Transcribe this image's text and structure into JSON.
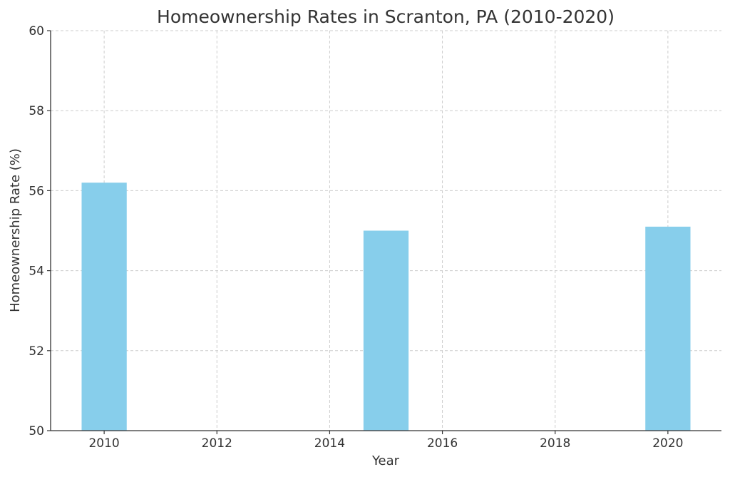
{
  "chart_data": {
    "type": "bar",
    "title": "Homeownership Rates in Scranton, PA (2010-2020)",
    "xlabel": "Year",
    "ylabel": "Homeownership Rate (%)",
    "x": [
      2010,
      2015,
      2020
    ],
    "values": [
      56.2,
      55.0,
      55.1
    ],
    "bar_width_years": 0.8,
    "xlim": [
      2009.05,
      2020.95
    ],
    "ylim": [
      50,
      60
    ],
    "x_ticks": [
      2010,
      2012,
      2014,
      2016,
      2018,
      2020
    ],
    "y_ticks": [
      50,
      52,
      54,
      56,
      58,
      60
    ],
    "bar_color": "#87ceeb",
    "grid": true,
    "legend": "none"
  }
}
